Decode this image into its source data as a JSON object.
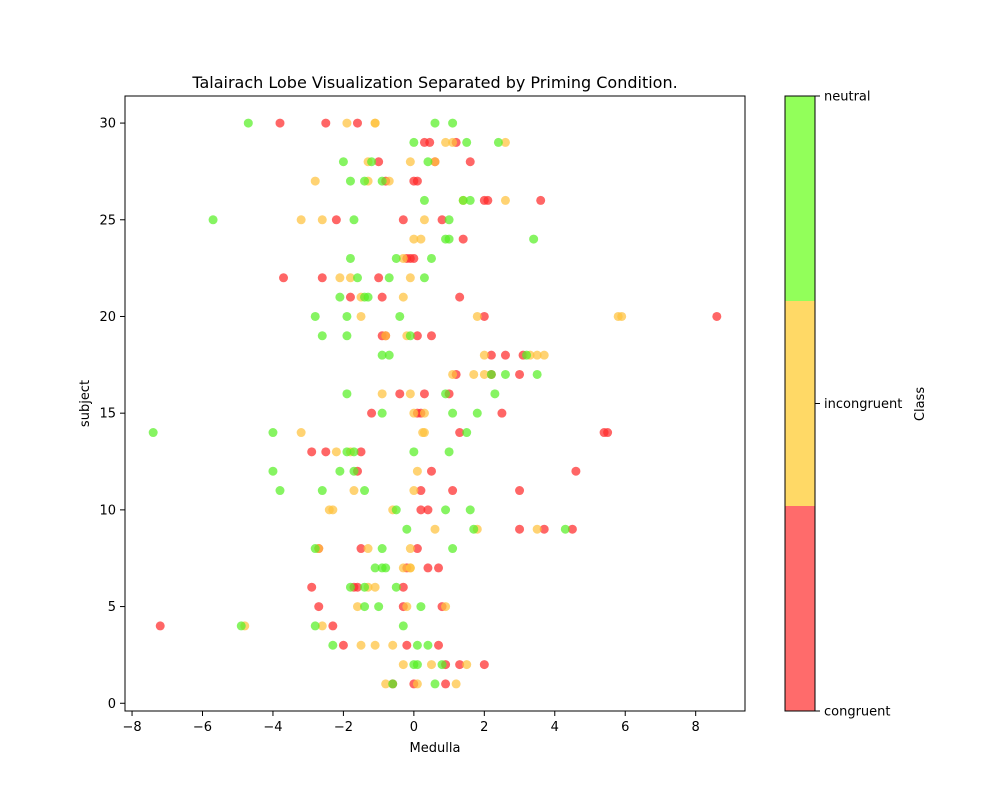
{
  "chart_data": {
    "type": "scatter",
    "title": "Talairach Lobe Visualization Separated by Priming Condition.",
    "xlabel": "Medulla",
    "ylabel": "subject",
    "xlim": [
      -8.2,
      9.4
    ],
    "ylim": [
      -0.4,
      31.4
    ],
    "xticks": [
      -8,
      -6,
      -4,
      -2,
      0,
      2,
      4,
      6,
      8
    ],
    "yticks": [
      0,
      5,
      10,
      15,
      20,
      25,
      30
    ],
    "grid": false,
    "colorbar": {
      "label": "Class",
      "classes": [
        "congruent",
        "incongruent",
        "neutral"
      ],
      "colors": {
        "congruent": "#ff6b6b",
        "incongruent": "#ffd966",
        "neutral": "#92ff5a"
      }
    },
    "point_colors": {
      "congruent": "#ff2b2b",
      "incongruent": "#ffc23d",
      "neutral": "#58f026"
    },
    "series": [
      {
        "class": "congruent",
        "points": [
          [
            -3.8,
            30
          ],
          [
            -2.5,
            30
          ],
          [
            -1.6,
            30
          ],
          [
            0.3,
            29
          ],
          [
            0.45,
            29
          ],
          [
            1.2,
            29
          ],
          [
            -1,
            28
          ],
          [
            0.6,
            28
          ],
          [
            1.6,
            28
          ],
          [
            -0.8,
            27
          ],
          [
            0,
            27
          ],
          [
            0.1,
            27
          ],
          [
            2.1,
            26
          ],
          [
            2,
            26
          ],
          [
            3.6,
            26
          ],
          [
            -2.2,
            25
          ],
          [
            -0.3,
            25
          ],
          [
            0.8,
            25
          ],
          [
            1.4,
            24
          ],
          [
            -0.1,
            23
          ],
          [
            -0.2,
            23
          ],
          [
            0,
            23
          ],
          [
            -3.7,
            22
          ],
          [
            -2.6,
            22
          ],
          [
            -1,
            22
          ],
          [
            -1.8,
            21
          ],
          [
            -0.9,
            21
          ],
          [
            1.3,
            21
          ],
          [
            2,
            20
          ],
          [
            8.6,
            20
          ],
          [
            -0.9,
            19
          ],
          [
            -0.8,
            19
          ],
          [
            0.1,
            19
          ],
          [
            0.5,
            19
          ],
          [
            2.2,
            18
          ],
          [
            2.6,
            18
          ],
          [
            3.1,
            18
          ],
          [
            1.2,
            17
          ],
          [
            2.2,
            17
          ],
          [
            3,
            17
          ],
          [
            -0.4,
            16
          ],
          [
            0.3,
            16
          ],
          [
            1,
            16
          ],
          [
            -1.2,
            15
          ],
          [
            0.1,
            15
          ],
          [
            0.2,
            15
          ],
          [
            2.5,
            15
          ],
          [
            1.3,
            14
          ],
          [
            5.4,
            14
          ],
          [
            5.5,
            14
          ],
          [
            -2.9,
            13
          ],
          [
            -2.5,
            13
          ],
          [
            -1.5,
            13
          ],
          [
            -1.6,
            12
          ],
          [
            0.5,
            12
          ],
          [
            4.6,
            12
          ],
          [
            0.2,
            11
          ],
          [
            1.1,
            11
          ],
          [
            3,
            11
          ],
          [
            0.2,
            10
          ],
          [
            0.4,
            10
          ],
          [
            3,
            9
          ],
          [
            3.7,
            9
          ],
          [
            4.5,
            9
          ],
          [
            -2.7,
            8
          ],
          [
            -1.5,
            8
          ],
          [
            0.1,
            8
          ],
          [
            -0.2,
            7
          ],
          [
            0.4,
            7
          ],
          [
            0.7,
            7
          ],
          [
            -2.9,
            6
          ],
          [
            -1.6,
            6
          ],
          [
            -1.7,
            6
          ],
          [
            -0.3,
            6
          ],
          [
            -2.7,
            5
          ],
          [
            -0.3,
            5
          ],
          [
            0.8,
            5
          ],
          [
            -7.2,
            4
          ],
          [
            -2.3,
            4
          ],
          [
            -2,
            3
          ],
          [
            -0.2,
            3
          ],
          [
            0.7,
            3
          ],
          [
            0.9,
            2
          ],
          [
            1.3,
            2
          ],
          [
            2,
            2
          ],
          [
            -0.6,
            1
          ],
          [
            0,
            1
          ],
          [
            0.9,
            1
          ]
        ]
      },
      {
        "class": "incongruent",
        "points": [
          [
            -1.9,
            30
          ],
          [
            -1.1,
            30
          ],
          [
            -1.1,
            30
          ],
          [
            0.9,
            29
          ],
          [
            1.1,
            29
          ],
          [
            2.6,
            29
          ],
          [
            -1.3,
            28
          ],
          [
            -0.1,
            28
          ],
          [
            0.6,
            28
          ],
          [
            -2.8,
            27
          ],
          [
            -1.3,
            27
          ],
          [
            -0.7,
            27
          ],
          [
            1.4,
            26
          ],
          [
            2.6,
            26
          ],
          [
            -3.2,
            25
          ],
          [
            -2.6,
            25
          ],
          [
            0.3,
            25
          ],
          [
            0,
            24
          ],
          [
            0.2,
            24
          ],
          [
            -0.3,
            23
          ],
          [
            -2.1,
            22
          ],
          [
            -1.8,
            22
          ],
          [
            -0.1,
            22
          ],
          [
            -1.5,
            21
          ],
          [
            -0.3,
            21
          ],
          [
            -1.5,
            20
          ],
          [
            1.8,
            20
          ],
          [
            5.8,
            20
          ],
          [
            5.9,
            20
          ],
          [
            -0.8,
            19
          ],
          [
            -0.2,
            19
          ],
          [
            2,
            18
          ],
          [
            3.3,
            18
          ],
          [
            3.5,
            18
          ],
          [
            3.7,
            18
          ],
          [
            1.1,
            17
          ],
          [
            1.7,
            17
          ],
          [
            2,
            17
          ],
          [
            -0.1,
            16
          ],
          [
            -0.9,
            16
          ],
          [
            0,
            15
          ],
          [
            0.3,
            15
          ],
          [
            -3.2,
            14
          ],
          [
            0.3,
            14
          ],
          [
            0.25,
            14
          ],
          [
            -2.2,
            13
          ],
          [
            -1.8,
            13
          ],
          [
            0.1,
            12
          ],
          [
            -1.7,
            11
          ],
          [
            0,
            11
          ],
          [
            -2.4,
            10
          ],
          [
            -2.3,
            10
          ],
          [
            -0.6,
            10
          ],
          [
            0.6,
            9
          ],
          [
            1.8,
            9
          ],
          [
            3.5,
            9
          ],
          [
            -2.7,
            8
          ],
          [
            -1.3,
            8
          ],
          [
            -0.1,
            8
          ],
          [
            -0.1,
            7
          ],
          [
            -0.3,
            7
          ],
          [
            -0.1,
            7
          ],
          [
            -1.3,
            6
          ],
          [
            -1.1,
            6
          ],
          [
            -1.6,
            5
          ],
          [
            -0.2,
            5
          ],
          [
            0.9,
            5
          ],
          [
            -4.8,
            4
          ],
          [
            -2.6,
            4
          ],
          [
            -1.5,
            3
          ],
          [
            -1.1,
            3
          ],
          [
            -0.6,
            3
          ],
          [
            -0.3,
            2
          ],
          [
            0.5,
            2
          ],
          [
            1.5,
            2
          ],
          [
            -0.8,
            1
          ],
          [
            0.1,
            1
          ],
          [
            1.2,
            1
          ]
        ]
      },
      {
        "class": "neutral",
        "points": [
          [
            -4.7,
            30
          ],
          [
            0.6,
            30
          ],
          [
            1.1,
            30
          ],
          [
            0,
            29
          ],
          [
            1.5,
            29
          ],
          [
            2.4,
            29
          ],
          [
            -2,
            28
          ],
          [
            -1.2,
            28
          ],
          [
            0.4,
            28
          ],
          [
            -1.8,
            27
          ],
          [
            -0.9,
            27
          ],
          [
            -1.4,
            27
          ],
          [
            0.3,
            26
          ],
          [
            1.4,
            26
          ],
          [
            1.6,
            26
          ],
          [
            -5.7,
            25
          ],
          [
            -1.7,
            25
          ],
          [
            1,
            25
          ],
          [
            0.9,
            24
          ],
          [
            1,
            24
          ],
          [
            3.4,
            24
          ],
          [
            -1.8,
            23
          ],
          [
            -0.5,
            23
          ],
          [
            0.5,
            23
          ],
          [
            -1.6,
            22
          ],
          [
            -0.7,
            22
          ],
          [
            0.3,
            22
          ],
          [
            -2.1,
            21
          ],
          [
            -1.3,
            21
          ],
          [
            -1.4,
            21
          ],
          [
            -2.8,
            20
          ],
          [
            -1.9,
            20
          ],
          [
            -0.4,
            20
          ],
          [
            -2.6,
            19
          ],
          [
            -1.9,
            19
          ],
          [
            -0.1,
            19
          ],
          [
            -0.9,
            18
          ],
          [
            -0.7,
            18
          ],
          [
            3.2,
            18
          ],
          [
            2.6,
            17
          ],
          [
            3.5,
            17
          ],
          [
            2.2,
            17
          ],
          [
            -1.9,
            16
          ],
          [
            0.9,
            16
          ],
          [
            2.3,
            16
          ],
          [
            -0.9,
            15
          ],
          [
            1.1,
            15
          ],
          [
            1.8,
            15
          ],
          [
            -7.4,
            14
          ],
          [
            -4,
            14
          ],
          [
            1.5,
            14
          ],
          [
            -1.9,
            13
          ],
          [
            -1.7,
            13
          ],
          [
            1,
            13
          ],
          [
            0,
            13
          ],
          [
            -4,
            12
          ],
          [
            -2.1,
            12
          ],
          [
            -1.7,
            12
          ],
          [
            -3.8,
            11
          ],
          [
            -2.6,
            11
          ],
          [
            -1.4,
            11
          ],
          [
            -0.5,
            10
          ],
          [
            0.9,
            10
          ],
          [
            1.6,
            10
          ],
          [
            -0.2,
            9
          ],
          [
            1.7,
            9
          ],
          [
            4.3,
            9
          ],
          [
            -2.8,
            8
          ],
          [
            -0.9,
            8
          ],
          [
            1.1,
            8
          ],
          [
            -1.1,
            7
          ],
          [
            -0.9,
            7
          ],
          [
            -0.8,
            7
          ],
          [
            -1.8,
            6
          ],
          [
            -1.4,
            6
          ],
          [
            -0.5,
            6
          ],
          [
            -1.4,
            5
          ],
          [
            -1,
            5
          ],
          [
            0.2,
            5
          ],
          [
            -4.9,
            4
          ],
          [
            -2.8,
            4
          ],
          [
            -0.3,
            4
          ],
          [
            -2.3,
            3
          ],
          [
            0.1,
            3
          ],
          [
            0.4,
            3
          ],
          [
            0.1,
            2
          ],
          [
            0,
            2
          ],
          [
            0.8,
            2
          ],
          [
            -0.6,
            1
          ],
          [
            0.6,
            1
          ]
        ]
      }
    ]
  }
}
